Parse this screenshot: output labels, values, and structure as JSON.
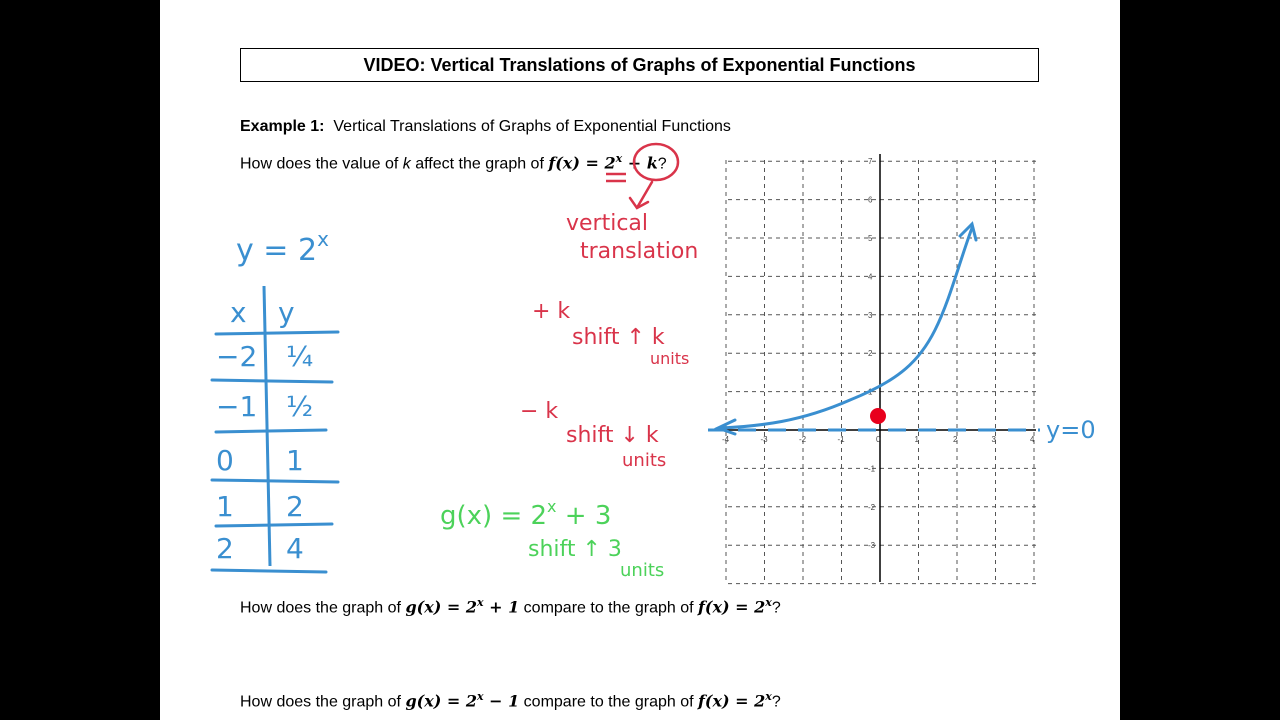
{
  "title": "VIDEO:  Vertical Translations of Graphs of Exponential Functions",
  "example": {
    "label": "Example 1:",
    "heading": "Vertical Translations of Graphs of Exponential Functions"
  },
  "question1": {
    "prefix": "How does the value of ",
    "k": "k",
    "mid": " affect the graph of ",
    "expr": "f(x) = 2",
    "exp": "x",
    "plus_k": " + k",
    "end": "?"
  },
  "question2": {
    "prefix": "How does the graph of ",
    "g": "g(x) = 2",
    "gexp": "x",
    "gtail": " + 1",
    "mid": " compare to the graph of ",
    "f": "f(x) = 2",
    "fexp": "x",
    "end": "?"
  },
  "question3": {
    "prefix": "How does the graph of ",
    "g": "g(x) = 2",
    "gexp": "x",
    "gtail": " − 1",
    "mid": " compare to the graph of ",
    "f": "f(x) = 2",
    "fexp": "x",
    "end": "?"
  },
  "handwritten": {
    "table_title": "y = 2",
    "table_title_exp": "x",
    "col_x": "x",
    "col_y": "y",
    "rows": [
      {
        "x": "−2",
        "y": "¼"
      },
      {
        "x": "−1",
        "y": "½"
      },
      {
        "x": "0",
        "y": "1"
      },
      {
        "x": "1",
        "y": "2"
      },
      {
        "x": "2",
        "y": "4"
      }
    ],
    "vertical": "vertical",
    "translation": "translation",
    "plus_k": "+ k",
    "shift_up": "shift ↑ k",
    "units1": "units",
    "minus_k": "− k",
    "shift_down": "shift ↓ k",
    "units2": "units",
    "g_example": "g(x) = 2",
    "g_example_exp": "x",
    "g_example_tail": " + 3",
    "shift_up3": "shift ↑ 3",
    "units3": "units",
    "asymptote": "y=0"
  },
  "graph": {
    "x_ticks": [
      "-4",
      "-3",
      "-2",
      "-1",
      "0",
      "1",
      "2",
      "3",
      "4"
    ],
    "y_ticks": [
      "-3",
      "-2",
      "-1",
      "1",
      "2",
      "3",
      "4",
      "5",
      "6",
      "7"
    ],
    "xlim": [
      -4,
      4
    ],
    "ylim": [
      -4,
      7
    ]
  },
  "colors": {
    "blue": "#3a8fd0",
    "red": "#d9344a",
    "green": "#4cd25a",
    "dot": "#e8001c"
  }
}
